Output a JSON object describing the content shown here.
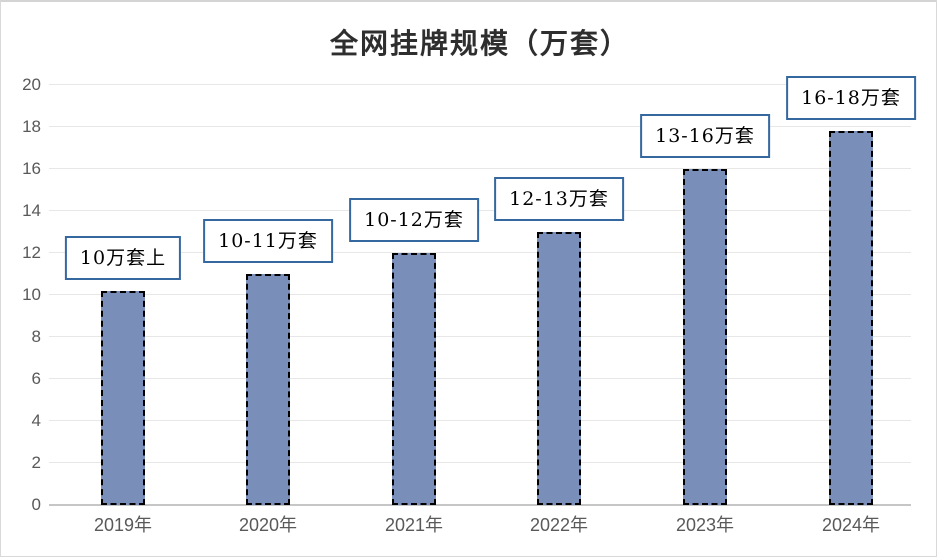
{
  "chart_data": {
    "type": "bar",
    "title": "全网挂牌规模（万套）",
    "categories": [
      "2019年",
      "2020年",
      "2021年",
      "2022年",
      "2023年",
      "2024年"
    ],
    "values": [
      10.2,
      11,
      12,
      13,
      16,
      17.8
    ],
    "bar_labels": [
      "10万套上",
      "10-11万套",
      "10-12万套",
      "12-13万套",
      "13-16万套",
      "16-18万套"
    ],
    "xlabel": "",
    "ylabel": "",
    "ylim": [
      0,
      20
    ],
    "y_ticks": [
      0,
      2,
      4,
      6,
      8,
      10,
      12,
      14,
      16,
      18,
      20
    ],
    "grid": true,
    "legend": "none",
    "colors": {
      "bar_fill": "#7A8EBA",
      "bar_border": "#000000",
      "label_box_border": "#35689F",
      "label_box_bg": "#ffffff",
      "grid_line": "#e7e7e7",
      "axis_line": "#c6c6c6",
      "tick_text": "#595959",
      "title_text": "#2e2e2e"
    }
  }
}
